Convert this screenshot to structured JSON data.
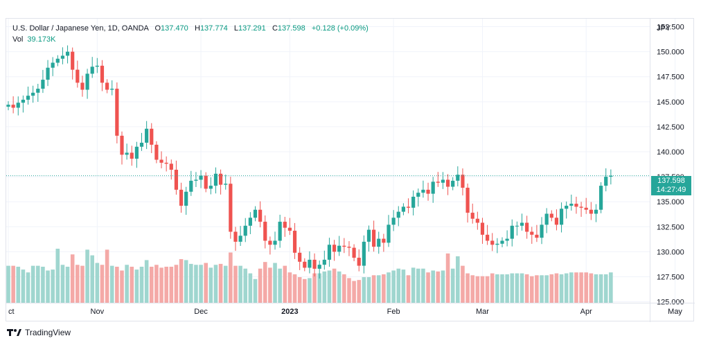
{
  "legend": {
    "symbol": "U.S. Dollar / Japanese Yen, 1D, OANDA",
    "open_label": "O",
    "open": "137.470",
    "high_label": "H",
    "high": "137.774",
    "low_label": "L",
    "low": "137.291",
    "close_label": "C",
    "close": "137.598",
    "change": "+0.128 (+0.09%)",
    "vol_label": "Vol",
    "vol": "39.173K"
  },
  "price_tag": {
    "price": "137.598",
    "countdown": "14:27:49"
  },
  "brand": {
    "name": "TradingView"
  },
  "colors": {
    "up": "#26a69a",
    "down": "#ef5350",
    "vol_up": "#9fd6cf",
    "vol_down": "#f4a9a7",
    "grid": "#f0f3fa",
    "last_price_line": "#26a69a"
  },
  "chart_data": {
    "type": "candlestick",
    "currency_label": "JPY",
    "y_ticks": [
      125,
      127.5,
      130,
      132.5,
      135,
      137.5,
      140,
      142.5,
      145,
      147.5,
      150,
      152.5
    ],
    "y_tick_labels": [
      "125.000",
      "127.500",
      "130.000",
      "132.500",
      "135.000",
      "137.500",
      "140.000",
      "142.500",
      "145.000",
      "147.500",
      "150.000",
      "152.500"
    ],
    "ylim": [
      124.9,
      153.3
    ],
    "x_tick_labels": [
      "ct",
      "Nov",
      "Dec",
      "2023",
      "Feb",
      "Mar",
      "Apr",
      "May"
    ],
    "x_tick_index": [
      0,
      18,
      39,
      57,
      78,
      96,
      117,
      135
    ],
    "last_price": 137.598,
    "closes": [
      144.7,
      144.4,
      144.9,
      145.2,
      145.6,
      145.9,
      146.3,
      147.2,
      148.4,
      148.9,
      149.3,
      149.6,
      150.0,
      148.2,
      146.9,
      146.2,
      147.8,
      148.5,
      148.6,
      146.9,
      146.2,
      146.3,
      141.6,
      139.7,
      139.9,
      139.3,
      140.5,
      140.9,
      142.3,
      140.7,
      139.2,
      138.9,
      138.8,
      138.2,
      136.2,
      134.6,
      136.0,
      137.1,
      137.2,
      137.6,
      136.3,
      136.6,
      137.8,
      136.7,
      136.8,
      132.0,
      131.0,
      131.6,
      132.6,
      133.4,
      134.2,
      133.0,
      131.1,
      130.7,
      131.1,
      133.0,
      132.4,
      132.1,
      129.9,
      129.0,
      128.4,
      129.2,
      128.3,
      128.7,
      129.2,
      130.7,
      130.0,
      130.6,
      130.5,
      130.4,
      129.4,
      128.6,
      131.0,
      132.2,
      130.5,
      131.3,
      130.9,
      132.7,
      133.4,
      134.0,
      134.5,
      134.4,
      135.5,
      135.9,
      136.2,
      135.8,
      137.0,
      136.9,
      137.2,
      136.5,
      137.1,
      137.7,
      136.4,
      133.9,
      133.3,
      132.9,
      131.7,
      131.1,
      130.7,
      130.8,
      131.1,
      131.3,
      132.6,
      132.6,
      132.9,
      132.0,
      131.7,
      131.4,
      132.7,
      133.8,
      133.4,
      132.7,
      134.3,
      134.6,
      134.8,
      134.5,
      134.4,
      134.2,
      133.8,
      134.2,
      136.6,
      137.5,
      137.6
    ],
    "volumes": [
      39,
      39,
      38,
      35,
      32,
      39,
      39,
      38,
      34,
      35,
      57,
      40,
      38,
      51,
      40,
      39,
      56,
      50,
      42,
      40,
      56,
      39,
      38,
      34,
      40,
      38,
      35,
      38,
      45,
      38,
      40,
      37,
      38,
      38,
      40,
      46,
      45,
      41,
      40,
      40,
      42,
      37,
      40,
      41,
      39,
      53,
      39,
      39,
      36,
      31,
      25,
      36,
      43,
      37,
      42,
      36,
      39,
      32,
      30,
      27,
      25,
      26,
      31,
      31,
      33,
      34,
      36,
      33,
      30,
      26,
      23,
      24,
      27,
      27,
      29,
      29,
      30,
      32,
      34,
      36,
      35,
      29,
      37,
      36,
      36,
      32,
      34,
      33,
      34,
      52,
      36,
      49,
      39,
      31,
      29,
      28,
      28,
      28,
      31,
      30,
      30,
      30,
      31,
      31,
      31,
      30,
      28,
      29,
      29,
      29,
      30,
      31,
      30,
      31,
      32,
      32,
      32,
      32,
      31,
      30,
      30,
      30,
      32,
      38,
      39
    ]
  }
}
